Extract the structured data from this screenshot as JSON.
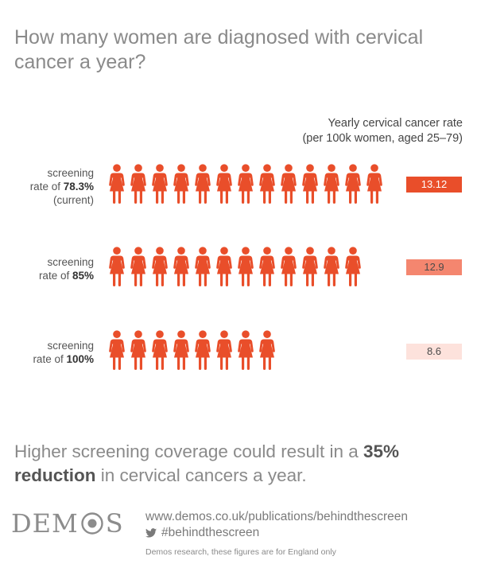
{
  "title": "How many women are diagnosed with cervical cancer a year?",
  "rate_heading": {
    "line1": "Yearly cervical cancer rate",
    "line2": "(per 100k women, aged 25–79)"
  },
  "rows": [
    {
      "label_prefix": "screening",
      "label_pre_bold": "rate of ",
      "label_bold": "78.3%",
      "label_suffix": "(current)",
      "value_text": "13.12"
    },
    {
      "label_prefix": "screening",
      "label_pre_bold": "rate of ",
      "label_bold": "85%",
      "label_suffix": "",
      "value_text": "12.9"
    },
    {
      "label_prefix": "screening",
      "label_pre_bold": "rate of ",
      "label_bold": "100%",
      "label_suffix": "",
      "value_text": "8.6"
    }
  ],
  "chart_data": {
    "type": "bar",
    "categories": [
      "78.3%",
      "85%",
      "100%"
    ],
    "values": [
      13.12,
      12.9,
      8.6
    ],
    "icon_unit": 1,
    "icon_color": "#e94e2a",
    "box_colors": [
      "#e94e2a",
      "#f4866f",
      "#fde2dc"
    ],
    "box_text_colors": [
      "#ffffff",
      "#4a4a4a",
      "#4a4a4a"
    ]
  },
  "summary": {
    "part1": "Higher screening coverage could result in a ",
    "bold": "35% reduction",
    "part2": " in cervical cancers a year."
  },
  "logo": {
    "left": "DEM",
    "right": "S"
  },
  "footer": {
    "url": "www.demos.co.uk/publications/behindthescreen",
    "hashtag": "#behindthescreen",
    "note": "Demos research, these figures are for England only"
  }
}
